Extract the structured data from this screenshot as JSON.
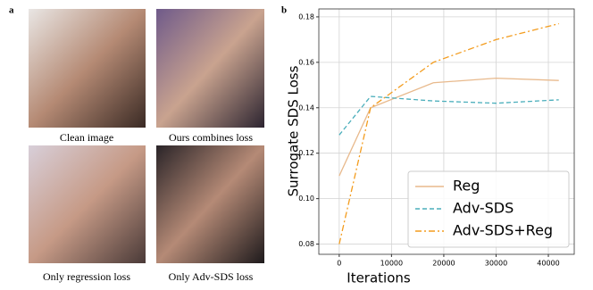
{
  "panel_a": {
    "label": "a",
    "captions": [
      "Clean image",
      "Ours combines loss",
      "Only regression loss",
      "Only Adv-SDS loss"
    ]
  },
  "chart_data": {
    "type": "line",
    "panel_label": "b",
    "xlabel": "Iterations",
    "ylabel": "Surrogate SDS Loss",
    "x": [
      0,
      6000,
      18000,
      30000,
      42000
    ],
    "series": [
      {
        "name": "Reg",
        "color": "#e8b98c",
        "linestyle": "solid",
        "values": [
          0.11,
          0.14,
          0.151,
          0.153,
          0.152
        ]
      },
      {
        "name": "Adv-SDS",
        "color": "#4aaebb",
        "linestyle": "dashed",
        "values": [
          0.128,
          0.145,
          0.143,
          0.142,
          0.1435
        ]
      },
      {
        "name": "Adv-SDS+Reg",
        "color": "#f39c1e",
        "linestyle": "dashdot",
        "values": [
          0.08,
          0.14,
          0.16,
          0.17,
          0.177
        ]
      }
    ],
    "xlim": [
      -3900,
      44950
    ],
    "ylim": [
      0.0755,
      0.1835
    ],
    "xticks": [
      0,
      10000,
      20000,
      30000,
      40000
    ],
    "yticks": [
      0.08,
      {
        "value": 0.1,
        "label": "0.10"
      },
      0.12,
      0.14,
      0.16,
      0.18
    ],
    "grid": true,
    "legend": "lower right"
  }
}
